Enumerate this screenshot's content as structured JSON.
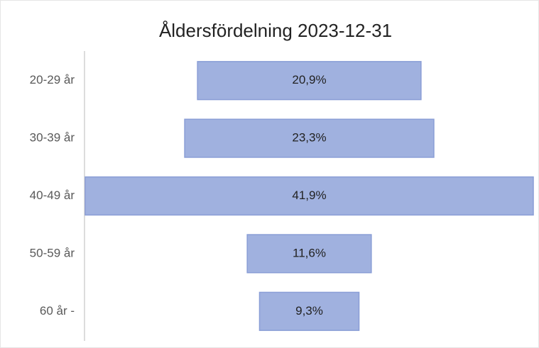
{
  "chart_data": {
    "type": "funnel",
    "title": "Åldersfördelning 2023-12-31",
    "categories": [
      "20-29 år",
      "30-39 år",
      "40-49 år",
      "50-59 år",
      "60 år -"
    ],
    "values": [
      20.9,
      23.3,
      41.9,
      11.6,
      9.3
    ],
    "value_labels": [
      "20,9%",
      "23,3%",
      "41,9%",
      "11,6%",
      "9,3%"
    ],
    "color": "#a0b1df"
  }
}
